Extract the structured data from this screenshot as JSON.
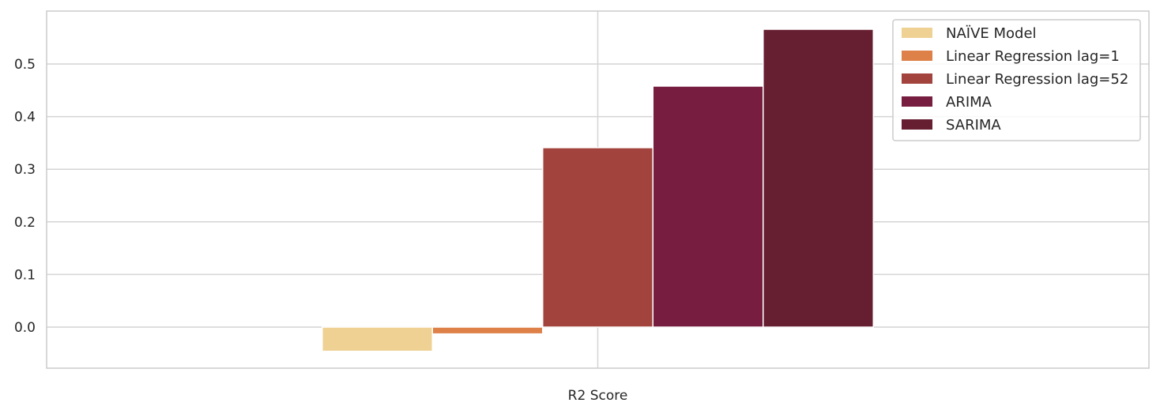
{
  "chart_data": {
    "type": "bar",
    "categories": [
      "R2 Score"
    ],
    "series": [
      {
        "name": "NAÏVE Model",
        "values": [
          -0.046
        ],
        "color": "#efd193"
      },
      {
        "name": "Linear Regression lag=1",
        "values": [
          -0.013
        ],
        "color": "#de8149"
      },
      {
        "name": "Linear Regression lag=52",
        "values": [
          0.341
        ],
        "color": "#a2433d"
      },
      {
        "name": "ARIMA",
        "values": [
          0.458
        ],
        "color": "#771e40"
      },
      {
        "name": "SARIMA",
        "values": [
          0.566
        ],
        "color": "#661f31"
      }
    ],
    "title": "",
    "xlabel": "",
    "ylabel": "",
    "ylim": [
      -0.08,
      0.6
    ],
    "yticks": [
      0.0,
      0.1,
      0.2,
      0.3,
      0.4,
      0.5
    ],
    "ytick_labels": [
      "0.0",
      "0.1",
      "0.2",
      "0.3",
      "0.4",
      "0.5"
    ],
    "grid": true,
    "legend_position": "top-right"
  }
}
